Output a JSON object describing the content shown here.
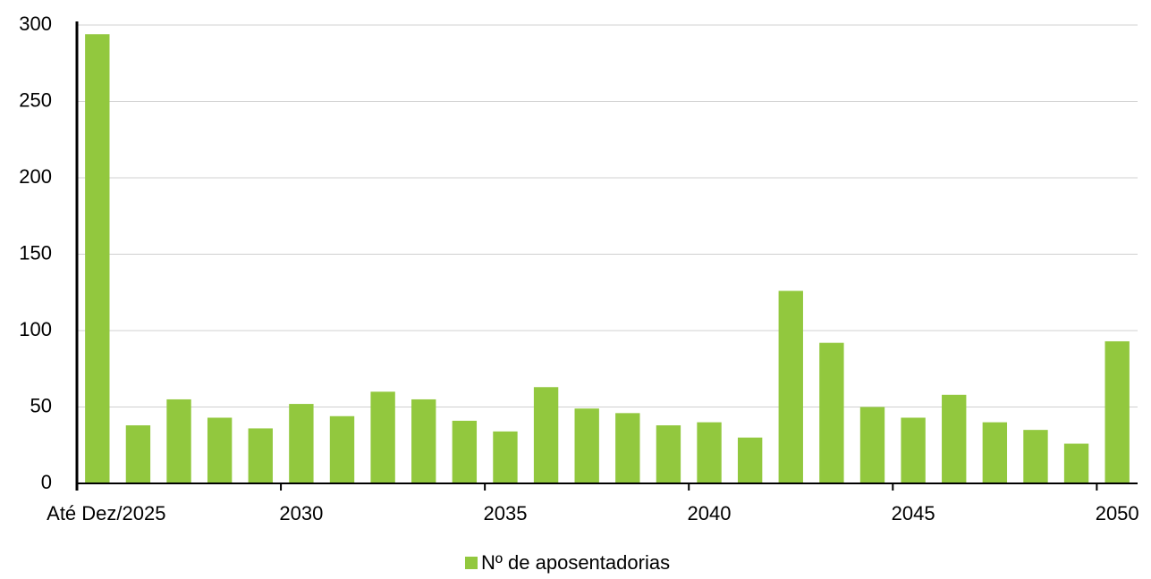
{
  "chart_data": {
    "type": "bar",
    "categories": [
      "Até Dez/2025",
      null,
      null,
      null,
      null,
      "2030",
      null,
      null,
      null,
      null,
      "2035",
      null,
      null,
      null,
      null,
      "2040",
      null,
      null,
      null,
      null,
      "2045",
      null,
      null,
      null,
      null,
      "2050"
    ],
    "series": [
      {
        "name": "Nº de aposentadorias",
        "color": "#92c83e",
        "values": [
          294,
          38,
          55,
          43,
          36,
          52,
          44,
          60,
          55,
          41,
          34,
          63,
          49,
          46,
          38,
          40,
          30,
          126,
          92,
          50,
          43,
          58,
          40,
          35,
          26,
          93
        ]
      }
    ],
    "ylim": [
      0,
      300
    ],
    "yticks": [
      0,
      50,
      100,
      150,
      200,
      250,
      300
    ],
    "grid": true,
    "legend": "bottom"
  }
}
